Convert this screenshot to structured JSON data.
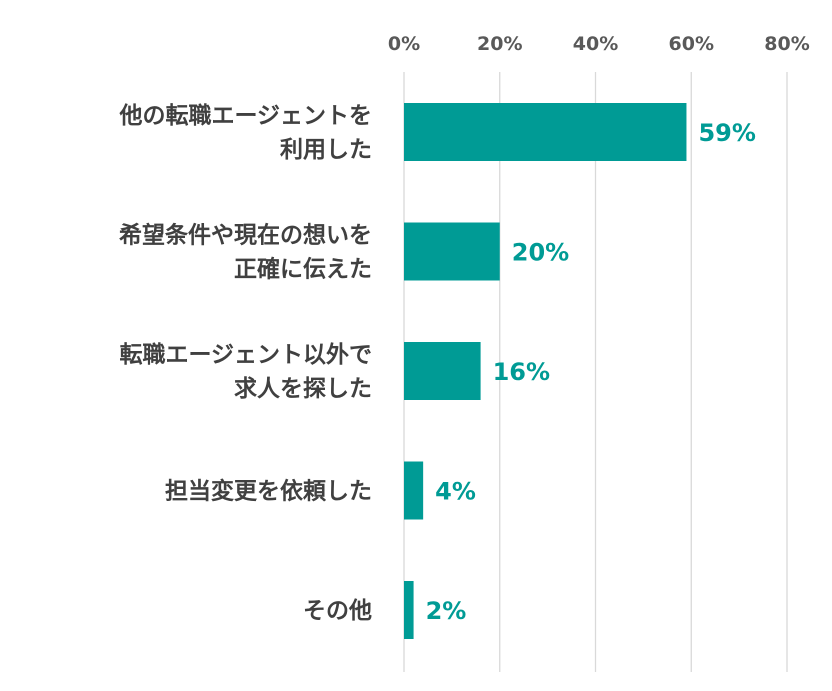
{
  "chart_data": {
    "type": "bar",
    "orientation": "horizontal",
    "categories": [
      [
        "他の転職エージェントを",
        "利用した"
      ],
      [
        "希望条件や現在の想いを",
        "正確に伝えた"
      ],
      [
        "転職エージェント以外で",
        "求人を探した"
      ],
      [
        "担当変更を依頼した"
      ],
      [
        "その他"
      ]
    ],
    "values": [
      59,
      20,
      16,
      4,
      2
    ],
    "data_labels": [
      "59%",
      "20%",
      "16%",
      "4%",
      "2%"
    ],
    "xlim": [
      0,
      80
    ],
    "xticks": [
      0,
      20,
      40,
      60,
      80
    ],
    "xtick_labels": [
      "0%",
      "20%",
      "40%",
      "60%",
      "80%"
    ],
    "x_axis_position": "top",
    "grid": true,
    "legend": "none",
    "bar_color": "#009b95",
    "label_color": "#009b95"
  }
}
